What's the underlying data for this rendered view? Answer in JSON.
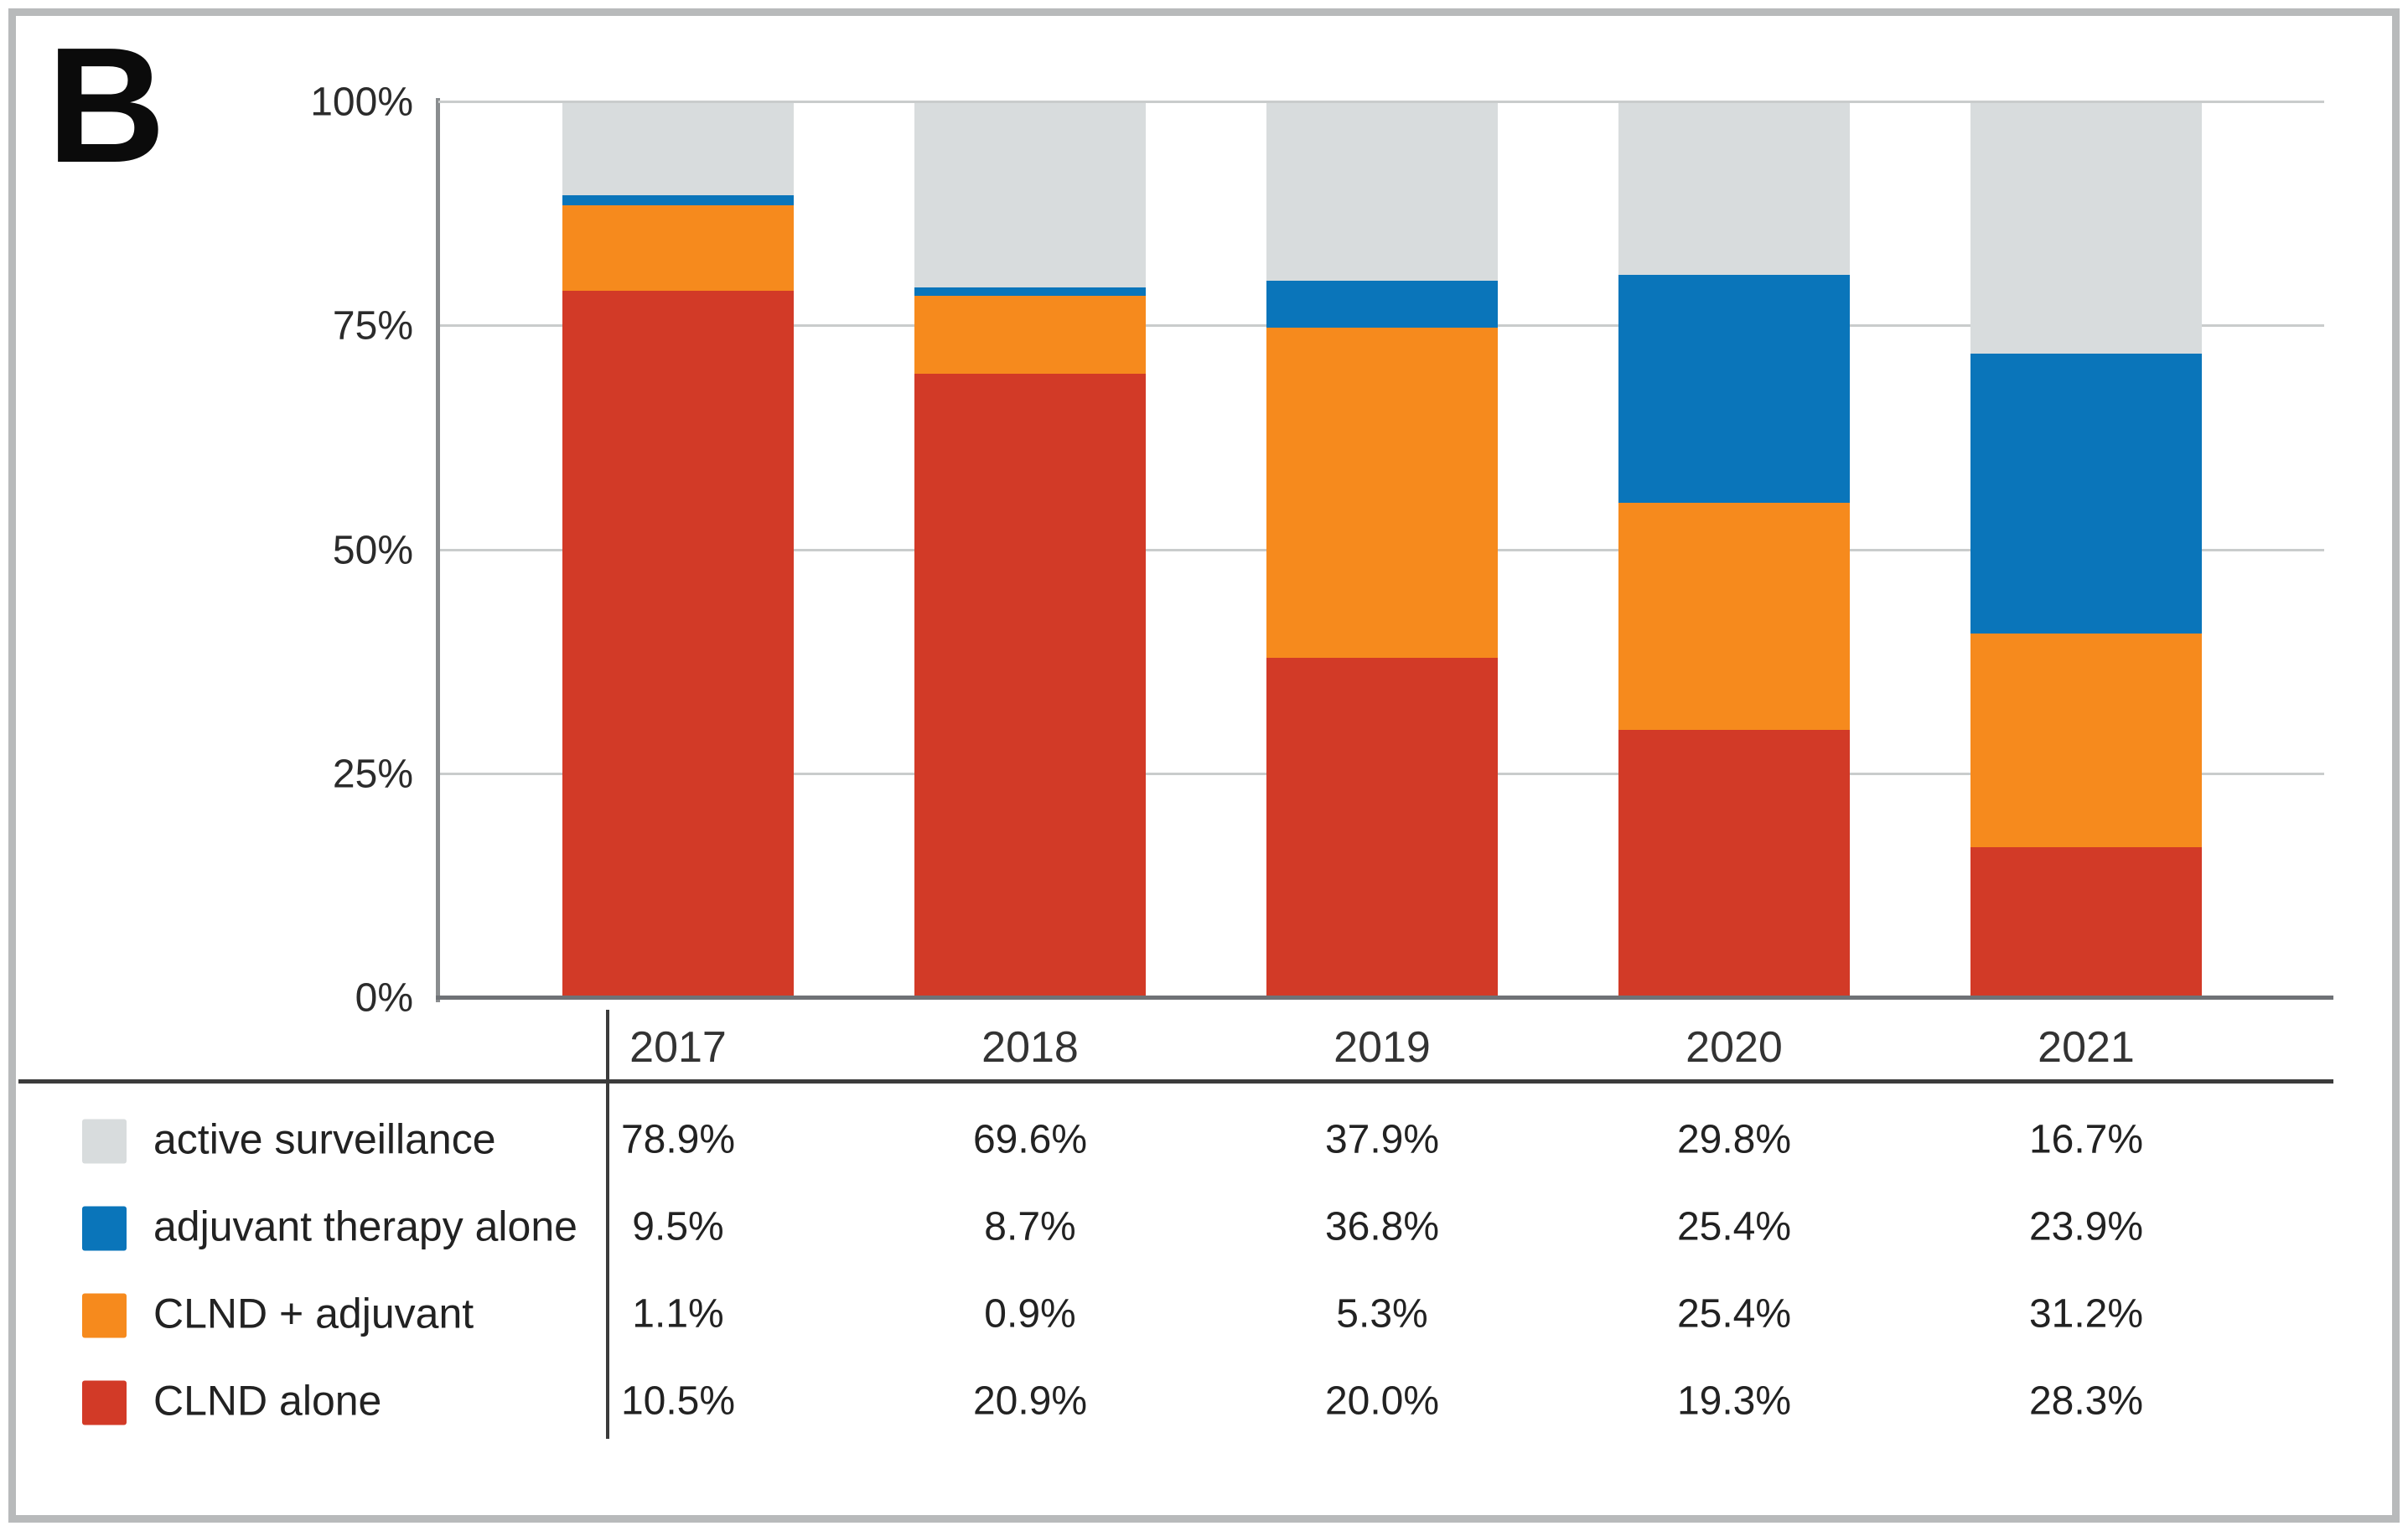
{
  "panel_label": "B",
  "colors": {
    "red": "#d23a27",
    "orange": "#f68a1d",
    "blue": "#0a75ba",
    "gray": "#d8dcdd"
  },
  "chart_data": {
    "type": "bar",
    "variant": "100pct-stacked-column",
    "title": "",
    "xlabel": "",
    "ylabel": "",
    "categories": [
      "2017",
      "2018",
      "2019",
      "2020",
      "2021"
    ],
    "series": [
      {
        "name": "active surveillance",
        "legend_color": "gray",
        "bar_segment_color": "red",
        "values": [
          78.9,
          69.6,
          37.9,
          29.8,
          16.7
        ]
      },
      {
        "name": "adjuvant therapy alone",
        "legend_color": "blue",
        "bar_segment_color": "orange",
        "values": [
          9.5,
          8.7,
          36.8,
          25.4,
          23.9
        ]
      },
      {
        "name": "CLND + adjuvant",
        "legend_color": "orange",
        "bar_segment_color": "blue",
        "values": [
          1.1,
          0.9,
          5.3,
          25.4,
          31.2
        ]
      },
      {
        "name": "CLND alone",
        "legend_color": "red",
        "bar_segment_color": "gray",
        "values": [
          10.5,
          20.9,
          20.0,
          19.3,
          28.3
        ]
      }
    ],
    "stack_order_bottom_to_top": [
      "active surveillance",
      "adjuvant therapy alone",
      "CLND + adjuvant",
      "CLND alone"
    ],
    "y_axis": {
      "range": [
        0,
        100
      ],
      "grid": true,
      "ticks": [
        {
          "label": "100%",
          "value": 100
        },
        {
          "label": "75%",
          "value": 75
        },
        {
          "label": "50%",
          "value": 50
        },
        {
          "label": "25%",
          "value": 25
        },
        {
          "label": "0%",
          "value": 0
        }
      ]
    },
    "legend_position": "bottom-left-table"
  },
  "table": {
    "column_headers": [
      "2017",
      "2018",
      "2019",
      "2020",
      "2021"
    ],
    "rows": [
      {
        "label": "active surveillance",
        "swatch_color": "gray",
        "values": [
          "78.9%",
          "69.6%",
          "37.9%",
          "29.8%",
          "16.7%"
        ]
      },
      {
        "label": "adjuvant therapy alone",
        "swatch_color": "blue",
        "values": [
          "9.5%",
          "8.7%",
          "36.8%",
          "25.4%",
          "23.9%"
        ]
      },
      {
        "label": "CLND + adjuvant",
        "swatch_color": "orange",
        "values": [
          "1.1%",
          "0.9%",
          "5.3%",
          "25.4%",
          "31.2%"
        ]
      },
      {
        "label": "CLND alone",
        "swatch_color": "red",
        "values": [
          "10.5%",
          "20.9%",
          "20.0%",
          "19.3%",
          "28.3%"
        ]
      }
    ]
  }
}
